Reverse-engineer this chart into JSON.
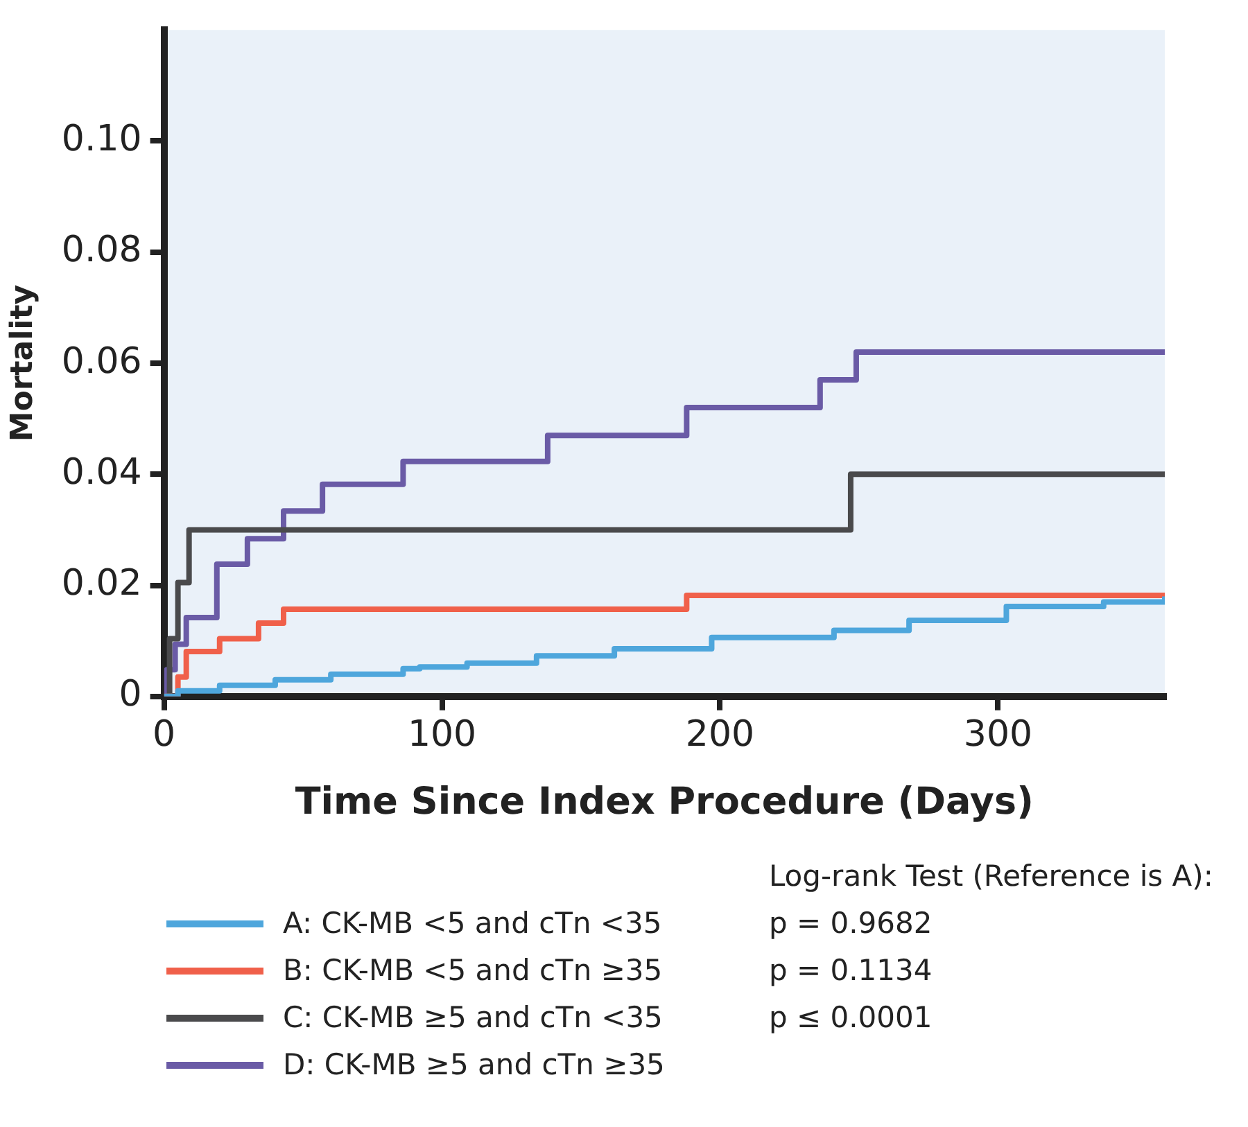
{
  "chart_data": {
    "type": "step",
    "xlabel": "Time Since Index Procedure (Days)",
    "ylabel": "Mortality",
    "xlim": [
      0,
      360
    ],
    "xticks": [
      0,
      100,
      200,
      300
    ],
    "ylim": [
      0,
      0.12
    ],
    "yticks": [
      0,
      0.02,
      0.04,
      0.06,
      0.08,
      {
        "value": 0.1,
        "label": "0.10"
      }
    ],
    "grid": false,
    "legend": "bottom",
    "marker": "none",
    "line_style": "solid",
    "series": [
      {
        "name": "A: CK-MB <5 and cTn <35",
        "color": "#4ea6dc",
        "x": [
          0,
          5,
          20,
          40,
          60,
          86,
          92,
          109,
          134,
          162,
          197,
          241,
          268,
          303,
          338,
          360
        ],
        "values": [
          0,
          0.001,
          0.002,
          0.003,
          0.004,
          0.005,
          0.0053,
          0.006,
          0.0073,
          0.0086,
          0.0106,
          0.0119,
          0.0137,
          0.0162,
          0.017,
          0.018
        ]
      },
      {
        "name": "B: CK-MB <5 and cTn ≥35",
        "color": "#f0604a",
        "x": [
          0,
          5,
          8,
          20,
          34,
          43,
          188,
          360
        ],
        "values": [
          0,
          0.0035,
          0.0081,
          0.0104,
          0.0132,
          0.0157,
          0.0182,
          0.0182
        ]
      },
      {
        "name": "C: CK-MB ≥5 and cTn <35",
        "color": "#4a4a4c",
        "x": [
          0,
          2,
          5,
          9,
          247,
          360
        ],
        "values": [
          0,
          0.0104,
          0.0205,
          0.03,
          0.04,
          0.04
        ]
      },
      {
        "name": "D: CK-MB ≥5 and cTn ≥35",
        "color": "#6a5ba6",
        "x": [
          0,
          1,
          4,
          8,
          19,
          30,
          43,
          57,
          86,
          138,
          188,
          236,
          249,
          360
        ],
        "values": [
          0,
          0.0048,
          0.0094,
          0.0142,
          0.0238,
          0.0284,
          0.0334,
          0.0382,
          0.0423,
          0.047,
          0.052,
          0.057,
          0.062,
          0.062
        ]
      }
    ],
    "annotations": [
      "Log-rank Test (Reference is A):",
      "p = 0.9682",
      "p = 0.1134",
      "p ≤ 0.0001"
    ]
  }
}
